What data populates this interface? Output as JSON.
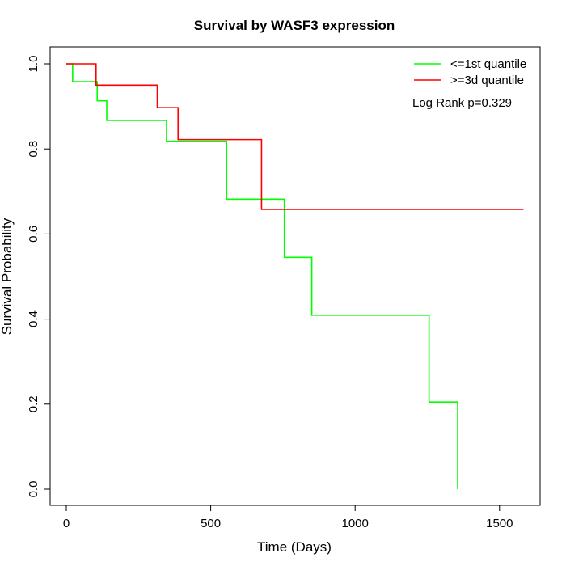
{
  "chart_data": {
    "type": "line",
    "step": true,
    "title": "Survival by WASF3 expression",
    "xlabel": "Time (Days)",
    "ylabel": "Survival Probability",
    "xlim": [
      0,
      1600
    ],
    "ylim": [
      0,
      1
    ],
    "xticks": [
      0,
      500,
      1000,
      1500
    ],
    "xtick_labels": [
      "0",
      "500",
      "1000",
      "1500"
    ],
    "yticks": [
      0,
      0.2,
      0.4,
      0.6,
      0.8,
      1.0
    ],
    "ytick_labels": [
      "0.0",
      "0.2",
      "0.4",
      "0.6",
      "0.8",
      "1.0"
    ],
    "grid": false,
    "legend_position": "top-right",
    "annotation": "Log Rank p=0.329",
    "series": [
      {
        "name": "<=1st quantile",
        "color": "#00ff00",
        "x": [
          0,
          22,
          107,
          140,
          347,
          555,
          755,
          850,
          1256,
          1355
        ],
        "y": [
          1.0,
          0.958,
          0.913,
          0.867,
          0.818,
          0.682,
          0.545,
          0.409,
          0.205,
          0.0
        ]
      },
      {
        "name": ">=3d quantile",
        "color": "#ff0000",
        "x": [
          0,
          103,
          315,
          387,
          676,
          1583
        ],
        "y": [
          1.0,
          0.95,
          0.897,
          0.822,
          0.658,
          0.658
        ]
      }
    ]
  }
}
